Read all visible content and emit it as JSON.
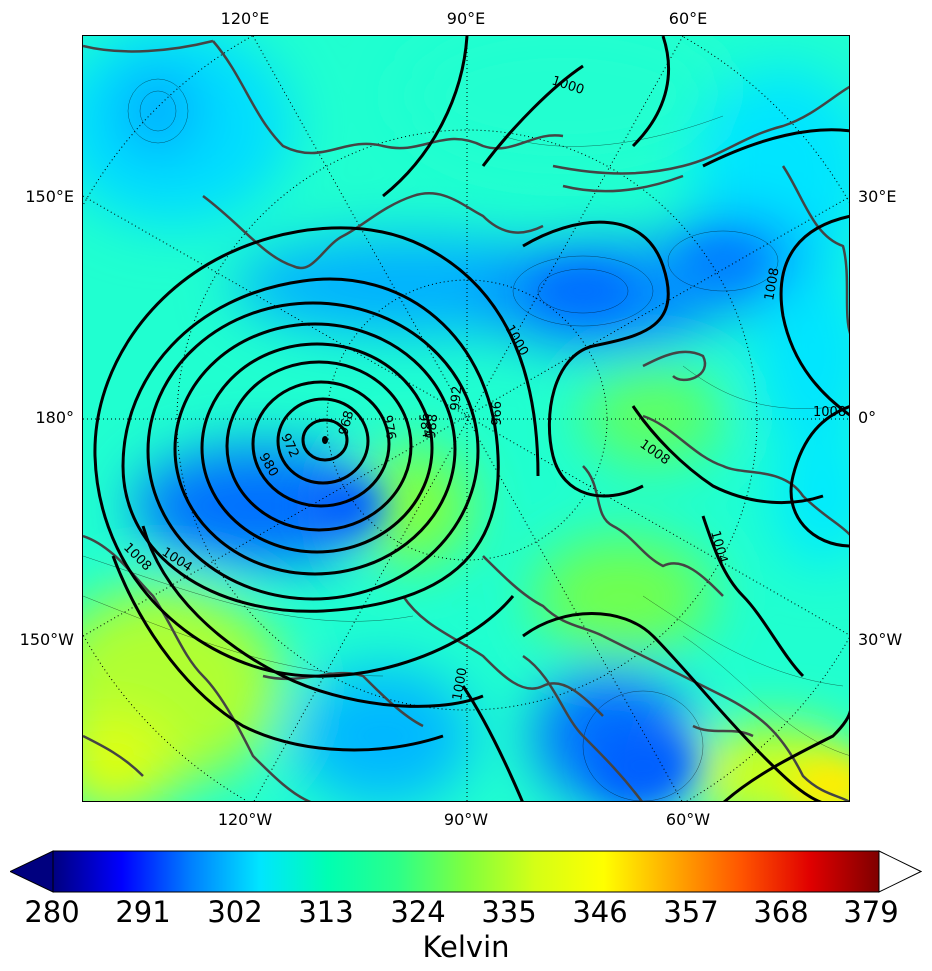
{
  "colors": {
    "colormap": [
      "#00007f",
      "#0000ff",
      "#007fff",
      "#00e5ff",
      "#00ffb2",
      "#2bff8a",
      "#7fff3f",
      "#d4ff16",
      "#ffff00",
      "#ffaa00",
      "#ff5500",
      "#e00000",
      "#7f0000"
    ],
    "coastline": "#444444",
    "isobar": "#000000"
  },
  "graticule_labels": {
    "top": [
      "120°E",
      "90°E",
      "60°E"
    ],
    "bottom": [
      "120°W",
      "90°W",
      "60°W"
    ],
    "left": [
      "150°E",
      "180°",
      "150°W"
    ],
    "right": [
      "30°E",
      "0°",
      "30°W"
    ]
  },
  "isobar_labels": [
    "1000",
    "1008",
    "1000",
    "1008",
    "1008",
    "1004",
    "1004",
    "1008",
    "1000",
    "996",
    "992",
    "988",
    "984",
    "976",
    "968",
    "972",
    "980"
  ],
  "colorbar": {
    "ticks": [
      "280",
      "291",
      "302",
      "313",
      "324",
      "335",
      "346",
      "357",
      "368",
      "379"
    ],
    "unit": "Kelvin"
  }
}
